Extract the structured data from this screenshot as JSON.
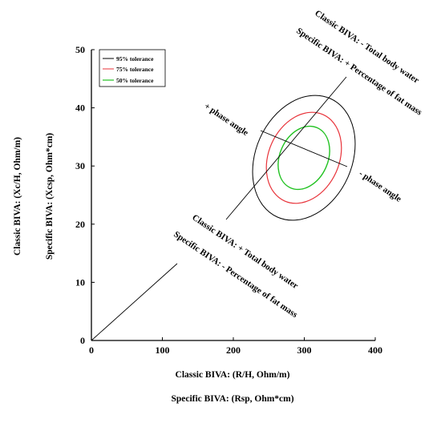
{
  "chart_data": {
    "type": "scatter",
    "x_label_1": "Classic BIVA: (R/H, Ohm/m)",
    "x_label_2": "Specific BIVA: (Rsp, Ohm*cm)",
    "y_label_1": "Classic BIVA: (Xc/H, Ohm/m)",
    "y_label_2": "Specific BIVA: (Xcsp, Ohm*cm)",
    "xlim": [
      0,
      400
    ],
    "ylim": [
      0,
      50
    ],
    "x_ticks": [
      "0",
      "100",
      "200",
      "300",
      "400"
    ],
    "y_ticks": [
      "0",
      "10",
      "20",
      "30",
      "40",
      "50"
    ],
    "legend": {
      "position": "top-left",
      "entries": [
        {
          "name": "95% tolerance",
          "color": "#000000"
        },
        {
          "name": "75% tolerance",
          "color": "#e8333a"
        },
        {
          "name": "50% tolerance",
          "color": "#22c222"
        }
      ]
    },
    "ellipses": [
      {
        "level": "95% tolerance",
        "center": [
          300,
          31.5
        ],
        "color": "#000000"
      },
      {
        "level": "75% tolerance",
        "center": [
          300,
          31.5
        ],
        "color": "#e8333a"
      },
      {
        "level": "50% tolerance",
        "center": [
          300,
          31.5
        ],
        "color": "#22c222"
      }
    ],
    "annotations": {
      "top_1": "Classic BIVA:  - Total body water",
      "top_2": "Specific BIVA: + Percentage of fat mass",
      "left": "+ phase angle",
      "right": "- phase angle",
      "bottom_1": "Classic BIVA:  + Total body water",
      "bottom_2": "Specific BIVA:  - Percentage of fat mass"
    }
  }
}
